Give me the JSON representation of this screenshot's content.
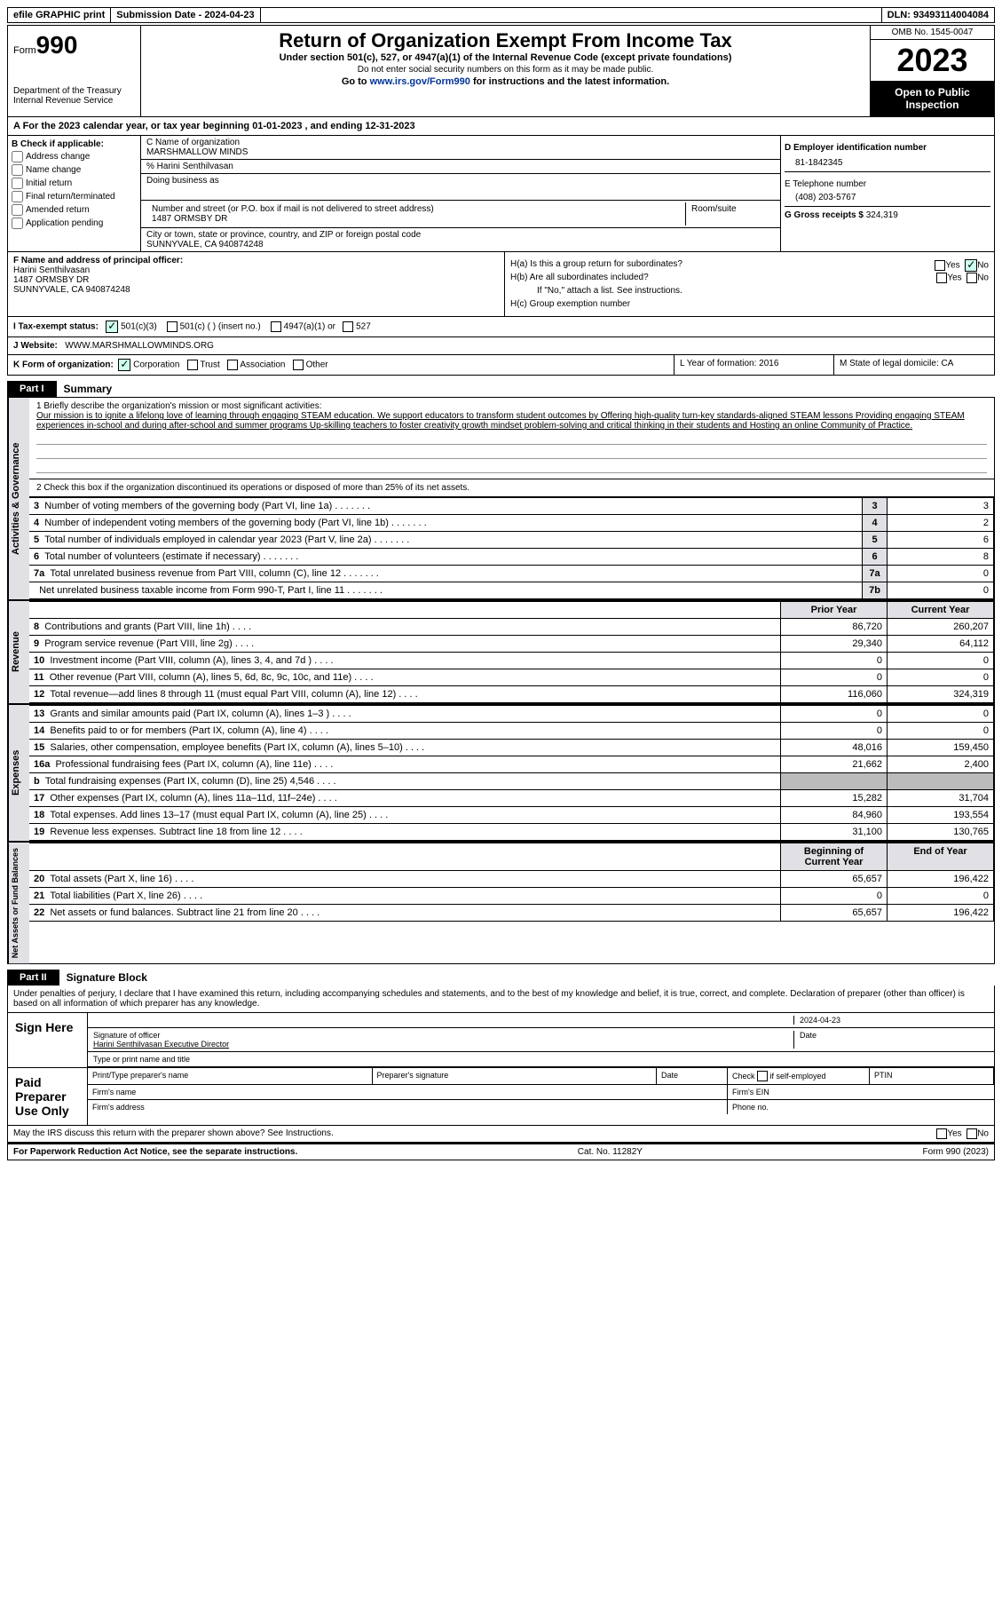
{
  "topbar": {
    "efile": "efile GRAPHIC print",
    "sub_date_label": "Submission Date - 2024-04-23",
    "dln_label": "DLN: 93493114004084"
  },
  "header": {
    "form_prefix": "Form",
    "form_number": "990",
    "dept": "Department of the Treasury\nInternal Revenue Service",
    "title": "Return of Organization Exempt From Income Tax",
    "under": "Under section 501(c), 527, or 4947(a)(1) of the Internal Revenue Code (except private foundations)",
    "ssn_note": "Do not enter social security numbers on this form as it may be made public.",
    "goto": "Go to www.irs.gov/Form990 for instructions and the latest information.",
    "goto_url": "www.irs.gov/Form990",
    "omb": "OMB No. 1545-0047",
    "year": "2023",
    "open": "Open to Public Inspection"
  },
  "section_a": "A   For the 2023 calendar year, or tax year beginning 01-01-2023   , and ending 12-31-2023",
  "col_b": {
    "label": "B Check if applicable:",
    "items": [
      "Address change",
      "Name change",
      "Initial return",
      "Final return/terminated",
      "Amended return",
      "Application pending"
    ]
  },
  "col_c": {
    "name_label": "C Name of organization",
    "name": "MARSHMALLOW MINDS",
    "care_of": "% Harini Senthilvasan",
    "dba_label": "Doing business as",
    "street_label": "Number and street (or P.O. box if mail is not delivered to street address)",
    "room_label": "Room/suite",
    "street": "1487 ORMSBY DR",
    "city_label": "City or town, state or province, country, and ZIP or foreign postal code",
    "city": "SUNNYVALE, CA   940874248"
  },
  "col_d": {
    "ein_label": "D Employer identification number",
    "ein": "81-1842345",
    "phone_label": "E Telephone number",
    "phone": "(408) 203-5767",
    "gross_label": "G Gross receipts $",
    "gross": "324,319"
  },
  "officer": {
    "f_label": "F Name and address of principal officer:",
    "name": "Harini Senthilvasan",
    "addr1": "1487 ORMSBY DR",
    "addr2": "SUNNYVALE, CA   940874248"
  },
  "h_section": {
    "ha": "H(a)  Is this a group return for subordinates?",
    "hb": "H(b)  Are all subordinates included?",
    "hb_note": "If \"No,\" attach a list. See instructions.",
    "hc": "H(c)  Group exemption number"
  },
  "row_i": {
    "label": "I    Tax-exempt status:",
    "c3": "501(c)(3)",
    "c_blank": "501(c) (   ) (insert no.)",
    "a1": "4947(a)(1) or",
    "s527": "527"
  },
  "row_j": {
    "label": "J   Website:",
    "value": "WWW.MARSHMALLOWMINDS.ORG"
  },
  "row_k": {
    "label": "K Form of organization:",
    "corp": "Corporation",
    "trust": "Trust",
    "assoc": "Association",
    "other": "Other"
  },
  "row_l": "L Year of formation: 2016",
  "row_m": "M State of legal domicile: CA",
  "part1": {
    "num": "Part I",
    "title": "Summary"
  },
  "mission": {
    "line1_label": "1   Briefly describe the organization's mission or most significant activities:",
    "text": "Our mission is to ignite a lifelong love of learning through engaging STEAM education. We support educators to transform student outcomes by Offering high-quality turn-key standards-aligned STEAM lessons Providing engaging STEAM experiences in-school and during after-school and summer programs Up-skilling teachers to foster creativity growth mindset problem-solving and critical thinking in their students and Hosting an online Community of Practice."
  },
  "line2": "2    Check this box      if the organization discontinued its operations or disposed of more than 25% of its net assets.",
  "gov_lines": [
    {
      "n": "3",
      "label": "Number of voting members of the governing body (Part VI, line 1a)",
      "box": "3",
      "val": "3"
    },
    {
      "n": "4",
      "label": "Number of independent voting members of the governing body (Part VI, line 1b)",
      "box": "4",
      "val": "2"
    },
    {
      "n": "5",
      "label": "Total number of individuals employed in calendar year 2023 (Part V, line 2a)",
      "box": "5",
      "val": "6"
    },
    {
      "n": "6",
      "label": "Total number of volunteers (estimate if necessary)",
      "box": "6",
      "val": "8"
    },
    {
      "n": "7a",
      "label": "Total unrelated business revenue from Part VIII, column (C), line 12",
      "box": "7a",
      "val": "0"
    },
    {
      "n": "",
      "label": "Net unrelated business taxable income from Form 990-T, Part I, line 11",
      "box": "7b",
      "val": "0"
    }
  ],
  "col_hdrs": {
    "prior": "Prior Year",
    "curr": "Current Year"
  },
  "revenue": [
    {
      "n": "8",
      "label": "Contributions and grants (Part VIII, line 1h)",
      "p": "86,720",
      "c": "260,207"
    },
    {
      "n": "9",
      "label": "Program service revenue (Part VIII, line 2g)",
      "p": "29,340",
      "c": "64,112"
    },
    {
      "n": "10",
      "label": "Investment income (Part VIII, column (A), lines 3, 4, and 7d )",
      "p": "0",
      "c": "0"
    },
    {
      "n": "11",
      "label": "Other revenue (Part VIII, column (A), lines 5, 6d, 8c, 9c, 10c, and 11e)",
      "p": "0",
      "c": "0"
    },
    {
      "n": "12",
      "label": "Total revenue—add lines 8 through 11 (must equal Part VIII, column (A), line 12)",
      "p": "116,060",
      "c": "324,319"
    }
  ],
  "expenses": [
    {
      "n": "13",
      "label": "Grants and similar amounts paid (Part IX, column (A), lines 1–3 )",
      "p": "0",
      "c": "0"
    },
    {
      "n": "14",
      "label": "Benefits paid to or for members (Part IX, column (A), line 4)",
      "p": "0",
      "c": "0"
    },
    {
      "n": "15",
      "label": "Salaries, other compensation, employee benefits (Part IX, column (A), lines 5–10)",
      "p": "48,016",
      "c": "159,450"
    },
    {
      "n": "16a",
      "label": "Professional fundraising fees (Part IX, column (A), line 11e)",
      "p": "21,662",
      "c": "2,400"
    },
    {
      "n": "b",
      "label": "Total fundraising expenses (Part IX, column (D), line 25) 4,546",
      "p": "GREY",
      "c": "GREY"
    },
    {
      "n": "17",
      "label": "Other expenses (Part IX, column (A), lines 11a–11d, 11f–24e)",
      "p": "15,282",
      "c": "31,704"
    },
    {
      "n": "18",
      "label": "Total expenses. Add lines 13–17 (must equal Part IX, column (A), line 25)",
      "p": "84,960",
      "c": "193,554"
    },
    {
      "n": "19",
      "label": "Revenue less expenses. Subtract line 18 from line 12",
      "p": "31,100",
      "c": "130,765"
    }
  ],
  "net_hdrs": {
    "beg": "Beginning of Current Year",
    "end": "End of Year"
  },
  "net_assets": [
    {
      "n": "20",
      "label": "Total assets (Part X, line 16)",
      "p": "65,657",
      "c": "196,422"
    },
    {
      "n": "21",
      "label": "Total liabilities (Part X, line 26)",
      "p": "0",
      "c": "0"
    },
    {
      "n": "22",
      "label": "Net assets or fund balances. Subtract line 21 from line 20",
      "p": "65,657",
      "c": "196,422"
    }
  ],
  "side_labels": {
    "gov": "Activities & Governance",
    "rev": "Revenue",
    "exp": "Expenses",
    "net": "Net Assets or Fund Balances"
  },
  "part2": {
    "num": "Part II",
    "title": "Signature Block"
  },
  "sig_decl": "Under penalties of perjury, I declare that I have examined this return, including accompanying schedules and statements, and to the best of my knowledge and belief, it is true, correct, and complete. Declaration of preparer (other than officer) is based on all information of which preparer has any knowledge.",
  "sign_here": "Sign Here",
  "sig_date": "2024-04-23",
  "sig_officer_label": "Signature of officer",
  "sig_officer": "Harini Senthilvasan  Executive Director",
  "sig_type_label": "Type or print name and title",
  "sig_date_label": "Date",
  "paid_prep": "Paid Preparer Use Only",
  "prep": {
    "name_label": "Print/Type preparer's name",
    "sig_label": "Preparer's signature",
    "date_label": "Date",
    "check_label": "Check       if self-employed",
    "ptin_label": "PTIN",
    "firm_name_label": "Firm's name",
    "firm_ein_label": "Firm's EIN",
    "firm_addr_label": "Firm's address",
    "phone_label": "Phone no."
  },
  "discuss": "May the IRS discuss this return with the preparer shown above? See Instructions.",
  "yes": "Yes",
  "no": "No",
  "footer": {
    "left": "For Paperwork Reduction Act Notice, see the separate instructions.",
    "mid": "Cat. No. 11282Y",
    "right": "Form 990 (2023)"
  }
}
